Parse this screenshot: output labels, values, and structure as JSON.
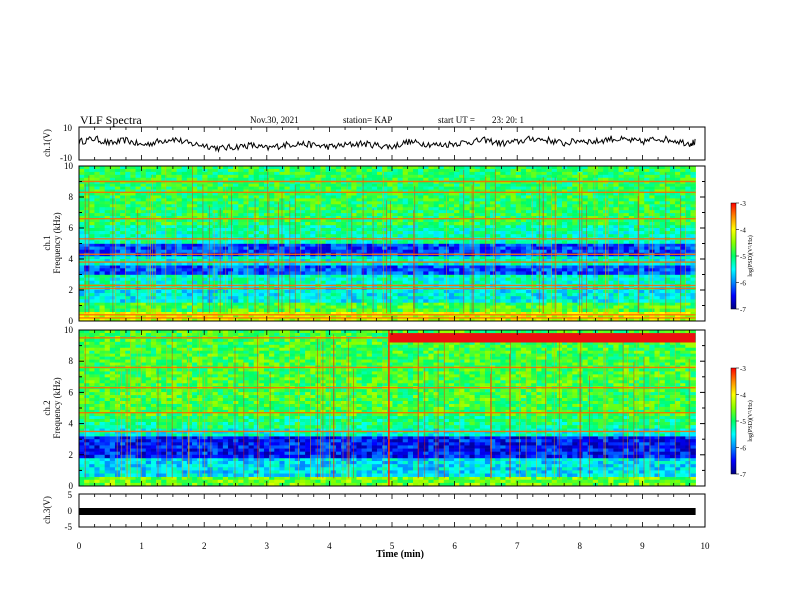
{
  "header": {
    "title": "VLF Spectra",
    "date": "Nov.30, 2021",
    "station": "station= KAP",
    "start_label": "start  UT =",
    "start_time": "23: 20: 1"
  },
  "chart_data": [
    {
      "type": "line",
      "name": "ch1-waveform",
      "ylabel": "ch.1(V)",
      "ylim": [
        -10,
        10
      ],
      "ytick_labels": [
        "10",
        "-10"
      ],
      "xlim": [
        0,
        10
      ],
      "x": [
        0,
        0.25,
        0.5,
        0.75,
        1,
        1.25,
        1.5,
        1.75,
        2,
        2.25,
        2.5,
        2.75,
        3,
        3.25,
        3.5,
        3.75,
        4,
        4.25,
        4.5,
        4.75,
        5,
        5.25,
        5.5,
        5.75,
        6,
        6.25,
        6.5,
        6.75,
        7,
        7.25,
        7.5,
        7.75,
        8,
        8.25,
        8.5,
        8.75,
        9,
        9.25,
        9.5,
        9.75,
        9.85
      ],
      "y": [
        1,
        3,
        0,
        2,
        -1,
        1,
        3,
        0,
        -1,
        -3,
        -2,
        -1,
        -3,
        -1,
        0,
        -1,
        -2,
        -1,
        0,
        -1,
        -2,
        1,
        0,
        -1,
        0,
        1,
        2,
        0,
        1,
        3,
        2,
        0,
        2,
        1,
        3,
        2,
        1,
        3,
        2,
        0,
        1
      ]
    },
    {
      "type": "heatmap",
      "name": "ch1-spectrogram",
      "ylabel": "ch.1",
      "ylabel2": "Frequency (kHz)",
      "ylim": [
        0,
        10
      ],
      "xlim": [
        0,
        10
      ],
      "ytick_labels": [
        "0",
        "2",
        "4",
        "6",
        "8",
        "10"
      ],
      "bands": [
        {
          "f0": 0.0,
          "f1": 0.6,
          "level": 0.7
        },
        {
          "f0": 0.6,
          "f1": 1.2,
          "level": 0.55
        },
        {
          "f0": 1.2,
          "f1": 2.2,
          "level": 0.38
        },
        {
          "f0": 2.2,
          "f1": 3.0,
          "level": 0.42
        },
        {
          "f0": 3.0,
          "f1": 3.6,
          "level": 0.2
        },
        {
          "f0": 3.6,
          "f1": 4.2,
          "level": 0.4
        },
        {
          "f0": 4.2,
          "f1": 5.0,
          "level": 0.18
        },
        {
          "f0": 5.0,
          "f1": 6.2,
          "level": 0.44
        },
        {
          "f0": 6.2,
          "f1": 10.0,
          "level": 0.52
        }
      ],
      "lines_khz": [
        0.2,
        0.4,
        2.1,
        2.3,
        3.8,
        4.3,
        5.3,
        6.6,
        8.3,
        9.0
      ]
    },
    {
      "type": "heatmap",
      "name": "ch2-spectrogram",
      "ylabel": "ch.2",
      "ylabel2": "Frequency (kHz)",
      "ylim": [
        0,
        10
      ],
      "xlim": [
        0,
        10
      ],
      "ytick_labels": [
        "0",
        "2",
        "4",
        "6",
        "8",
        "10"
      ],
      "bands": [
        {
          "f0": 0.0,
          "f1": 0.6,
          "level": 0.6
        },
        {
          "f0": 0.6,
          "f1": 1.8,
          "level": 0.35
        },
        {
          "f0": 1.8,
          "f1": 3.2,
          "level": 0.14
        },
        {
          "f0": 3.2,
          "f1": 3.7,
          "level": 0.4
        },
        {
          "f0": 3.7,
          "f1": 4.5,
          "level": 0.48
        },
        {
          "f0": 4.5,
          "f1": 10.0,
          "level": 0.55
        }
      ],
      "lines_khz": [
        3.5,
        4.7,
        6.3,
        7.6,
        9.5
      ],
      "burst_after_min": 4.95,
      "burst_khz": [
        9.2,
        9.8
      ]
    },
    {
      "type": "line",
      "name": "ch3-waveform",
      "ylabel": "ch.3(V)",
      "ylim": [
        -5,
        5
      ],
      "ytick_labels": [
        "5",
        "0",
        "-5"
      ],
      "xlim": [
        0,
        10
      ],
      "x": [
        0,
        9.85
      ],
      "y": [
        0,
        0
      ]
    }
  ],
  "xaxis": {
    "label": "Time  (min)",
    "ticks": [
      "0",
      "1",
      "2",
      "3",
      "4",
      "5",
      "6",
      "7",
      "8",
      "9",
      "10"
    ]
  },
  "colorbar": {
    "label": "log(PSD)(V²/Hz)",
    "ticks": [
      "-3",
      "-4",
      "-5",
      "-6",
      "-7"
    ],
    "colors": [
      "#ff0000",
      "#ff8800",
      "#ffff00",
      "#88ff00",
      "#00ff66",
      "#00ffff",
      "#0088ff",
      "#0000ff",
      "#000080"
    ]
  }
}
